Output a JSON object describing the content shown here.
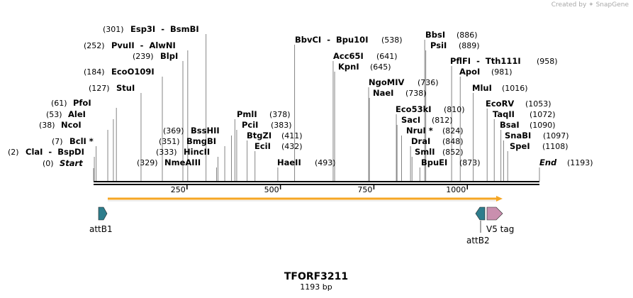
{
  "credit": {
    "prefix": "Created by",
    "brand": "SnapGene"
  },
  "map": {
    "name": "TFORF3211",
    "length_label": "1193 bp",
    "length": 1193
  },
  "ticks": [
    "250",
    "500",
    "750",
    "1000"
  ],
  "sites": [
    {
      "name": "Start",
      "pos": 0,
      "pos_label": "(0)",
      "italic": true
    },
    {
      "name": "ClaI  -  BspDI",
      "pos": 2,
      "pos_label": "(2)"
    },
    {
      "name": "BclI *",
      "pos": 7,
      "pos_label": "(7)"
    },
    {
      "name": "NcoI",
      "pos": 38,
      "pos_label": "(38)"
    },
    {
      "name": "AleI",
      "pos": 53,
      "pos_label": "(53)"
    },
    {
      "name": "PfoI",
      "pos": 61,
      "pos_label": "(61)"
    },
    {
      "name": "StuI",
      "pos": 127,
      "pos_label": "(127)"
    },
    {
      "name": "EcoO109I",
      "pos": 184,
      "pos_label": "(184)"
    },
    {
      "name": "BlpI",
      "pos": 239,
      "pos_label": "(239)"
    },
    {
      "name": "PvuII  -  AlwNI",
      "pos": 252,
      "pos_label": "(252)"
    },
    {
      "name": "Esp3I  -  BsmBI",
      "pos": 301,
      "pos_label": "(301)"
    },
    {
      "name": "NmeAIII",
      "pos": 329,
      "pos_label": "(329)"
    },
    {
      "name": "HincII",
      "pos": 333,
      "pos_label": "(333)"
    },
    {
      "name": "BmgBI",
      "pos": 351,
      "pos_label": "(351)"
    },
    {
      "name": "BssHII",
      "pos": 369,
      "pos_label": "(369)"
    },
    {
      "name": "PmlI",
      "pos": 378,
      "pos_label": "(378)"
    },
    {
      "name": "PciI",
      "pos": 383,
      "pos_label": "(383)"
    },
    {
      "name": "BtgZI",
      "pos": 411,
      "pos_label": "(411)"
    },
    {
      "name": "EciI",
      "pos": 432,
      "pos_label": "(432)"
    },
    {
      "name": "HaeII",
      "pos": 493,
      "pos_label": "(493)"
    },
    {
      "name": "BbvCI  -  Bpu10I",
      "pos": 538,
      "pos_label": "(538)"
    },
    {
      "name": "Acc65I",
      "pos": 641,
      "pos_label": "(641)"
    },
    {
      "name": "KpnI",
      "pos": 645,
      "pos_label": "(645)"
    },
    {
      "name": "NgoMIV",
      "pos": 736,
      "pos_label": "(736)"
    },
    {
      "name": "NaeI",
      "pos": 738,
      "pos_label": "(738)"
    },
    {
      "name": "Eco53kI",
      "pos": 810,
      "pos_label": "(810)"
    },
    {
      "name": "SacI",
      "pos": 812,
      "pos_label": "(812)"
    },
    {
      "name": "NruI *",
      "pos": 824,
      "pos_label": "(824)"
    },
    {
      "name": "DraI",
      "pos": 848,
      "pos_label": "(848)"
    },
    {
      "name": "SmlI",
      "pos": 852,
      "pos_label": "(852)"
    },
    {
      "name": "BpuEI",
      "pos": 873,
      "pos_label": "(873)"
    },
    {
      "name": "BbsI",
      "pos": 886,
      "pos_label": "(886)"
    },
    {
      "name": "PsiI",
      "pos": 889,
      "pos_label": "(889)"
    },
    {
      "name": "PflFI  -  Tth111I",
      "pos": 958,
      "pos_label": "(958)"
    },
    {
      "name": "ApoI",
      "pos": 981,
      "pos_label": "(981)"
    },
    {
      "name": "MluI",
      "pos": 1016,
      "pos_label": "(1016)"
    },
    {
      "name": "EcoRV",
      "pos": 1053,
      "pos_label": "(1053)"
    },
    {
      "name": "TaqII",
      "pos": 1072,
      "pos_label": "(1072)"
    },
    {
      "name": "BsaI",
      "pos": 1090,
      "pos_label": "(1090)"
    },
    {
      "name": "SnaBI",
      "pos": 1097,
      "pos_label": "(1097)"
    },
    {
      "name": "SpeI",
      "pos": 1108,
      "pos_label": "(1108)"
    },
    {
      "name": "End",
      "pos": 1193,
      "pos_label": "(1193)",
      "italic": true
    }
  ],
  "features": {
    "attB1": "attB1",
    "attB2": "attB2",
    "v5": "V5 tag",
    "orf_color": "#f5a623",
    "att_color": "#2e7d8c",
    "v5_color": "#c98fae"
  }
}
